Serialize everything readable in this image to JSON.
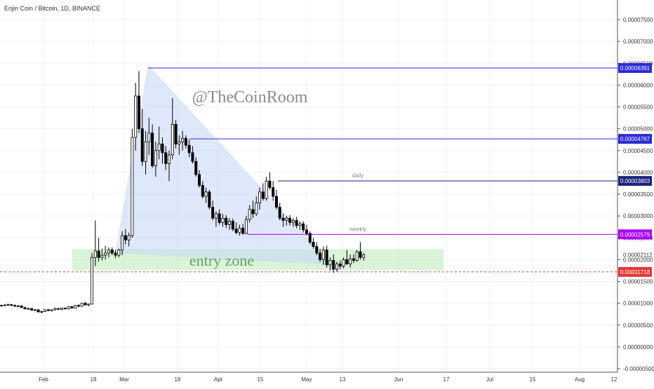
{
  "chart_data": {
    "type": "candlestick",
    "title": "Enjin Coin / Bitcoin, 1D, BINANCE",
    "watermark": "@TheCoinRoom",
    "zone_label": "entry zone",
    "x_ticks": [
      "Feb",
      "18",
      "Mar",
      "18",
      "Apr",
      "15",
      "May",
      "13",
      "Jun",
      "17",
      "Jul",
      "15",
      "Aug",
      "12"
    ],
    "y_ticks": [
      "0.00007500",
      "0.00007000",
      "0.00006500",
      "0.00006000",
      "0.00005500",
      "0.00005000",
      "0.00004500",
      "0.00004000",
      "0.00003500",
      "0.00003000",
      "0.00002500",
      "0.00002000",
      "0.00001500",
      "0.00001000",
      "0.00000500",
      "0.00000000",
      "-0.00000500"
    ],
    "ylim": [
      -5e-06,
      8e-05
    ],
    "price_label": "0.00002112",
    "levels": [
      {
        "value": 6.391e-05,
        "label": "0.00006391",
        "color": "#2b2bd6",
        "note": ""
      },
      {
        "value": 4.767e-05,
        "label": "0.00004767",
        "color": "#2b2bd6",
        "note": ""
      },
      {
        "value": 3.803e-05,
        "label": "0.00003803",
        "color": "#1a237e",
        "note": "daily"
      },
      {
        "value": 2.579e-05,
        "label": "0.00002579",
        "color": "#aa00ff",
        "note": "weekly"
      },
      {
        "value": 1.718e-05,
        "label": "0.00001718",
        "color": "#e53935",
        "note": ""
      }
    ],
    "entry_zone": {
      "from": 1.76e-05,
      "to": 2.24e-05
    },
    "candles": [
      [
        9.5e-06,
        9.7e-06,
        9.3e-06,
        9.5e-06
      ],
      [
        9.5e-06,
        9.8e-06,
        9.3e-06,
        9.6e-06
      ],
      [
        9.6e-06,
        9.9e-06,
        9.4e-06,
        9.7e-06
      ],
      [
        9.7e-06,
        9.8e-06,
        9.4e-06,
        9.5e-06
      ],
      [
        9.5e-06,
        9.7e-06,
        9.2e-06,
        9.3e-06
      ],
      [
        9.3e-06,
        9.6e-06,
        9.1e-06,
        9.4e-06
      ],
      [
        9.4e-06,
        9.5e-06,
        8.9e-06,
        9e-06
      ],
      [
        9e-06,
        9.2e-06,
        8.6e-06,
        8.7e-06
      ],
      [
        8.7e-06,
        9e-06,
        8.5e-06,
        8.8e-06
      ],
      [
        8.8e-06,
        8.9e-06,
        8.3e-06,
        8.4e-06
      ],
      [
        8.4e-06,
        8.7e-06,
        8.2e-06,
        8.5e-06
      ],
      [
        8.5e-06,
        8.6e-06,
        7.9e-06,
        8e-06
      ],
      [
        8e-06,
        8.3e-06,
        7.7e-06,
        8.1e-06
      ],
      [
        8.1e-06,
        8.6e-06,
        8e-06,
        8.5e-06
      ],
      [
        8.5e-06,
        8.7e-06,
        8.2e-06,
        8.3e-06
      ],
      [
        8.3e-06,
        8.6e-06,
        8.1e-06,
        8.5e-06
      ],
      [
        8.5e-06,
        9e-06,
        8.3e-06,
        8.8e-06
      ],
      [
        8.8e-06,
        8.9e-06,
        8.5e-06,
        8.6e-06
      ],
      [
        8.6e-06,
        9e-06,
        8.4e-06,
        8.9e-06
      ],
      [
        8.9e-06,
        9e-06,
        8.6e-06,
        8.7e-06
      ],
      [
        8.7e-06,
        9.3e-06,
        8.6e-06,
        9.2e-06
      ],
      [
        9.2e-06,
        9.4e-06,
        8.8e-06,
        8.9e-06
      ],
      [
        8.9e-06,
        9.6e-06,
        8.8e-06,
        9.5e-06
      ],
      [
        9.5e-06,
        9.8e-06,
        9.1e-06,
        9.3e-06
      ],
      [
        9.3e-06,
        1.01e-05,
        9.2e-06,
        1e-05
      ],
      [
        1e-05,
        1.03e-05,
        9.5e-06,
        9.6e-06
      ],
      [
        9.6e-06,
        9.9e-06,
        9.3e-06,
        9.8e-06
      ],
      [
        9.8e-06,
        2.15e-05,
        9.7e-06,
        2.05e-05
      ],
      [
        2.05e-05,
        2.9e-05,
        1.85e-05,
        2.2e-05
      ],
      [
        2.2e-05,
        2.5e-05,
        1.95e-05,
        2.05e-05
      ],
      [
        2.05e-05,
        2.25e-05,
        1.98e-05,
        2.1e-05
      ],
      [
        2.1e-05,
        2.32e-05,
        2e-05,
        2.15e-05
      ],
      [
        2.15e-05,
        2.28e-05,
        2.05e-05,
        2.22e-05
      ],
      [
        2.22e-05,
        2.28e-05,
        2.1e-05,
        2.15e-05
      ],
      [
        2.15e-05,
        2.22e-05,
        2.03e-05,
        2.1e-05
      ],
      [
        2.1e-05,
        2.25e-05,
        2.05e-05,
        2.22e-05
      ],
      [
        2.22e-05,
        2.65e-05,
        2.1e-05,
        2.55e-05
      ],
      [
        2.55e-05,
        2.7e-05,
        2.35e-05,
        2.45e-05
      ],
      [
        2.45e-05,
        2.62e-05,
        2.3e-05,
        2.55e-05
      ],
      [
        2.55e-05,
        5e-05,
        2.5e-05,
        4.8e-05
      ],
      [
        4.8e-05,
        6.05e-05,
        4.5e-05,
        5.75e-05
      ],
      [
        5.75e-05,
        6.32e-05,
        4.9e-05,
        5e-05
      ],
      [
        5e-05,
        5.45e-05,
        4.15e-05,
        4.25e-05
      ],
      [
        4.25e-05,
        4.95e-05,
        3.95e-05,
        4.7e-05
      ],
      [
        4.7e-05,
        5.25e-05,
        4.4e-05,
        4.9e-05
      ],
      [
        4.9e-05,
        5.1e-05,
        4.1e-05,
        4.15e-05
      ],
      [
        4.15e-05,
        4.7e-05,
        3.9e-05,
        4.5e-05
      ],
      [
        4.5e-05,
        5.05e-05,
        4.3e-05,
        4.65e-05
      ],
      [
        4.65e-05,
        4.8e-05,
        4.2e-05,
        4.45e-05
      ],
      [
        4.45e-05,
        4.6e-05,
        4.05e-05,
        4.2e-05
      ],
      [
        4.2e-05,
        4.5e-05,
        3.8e-05,
        4.4e-05
      ],
      [
        4.4e-05,
        5.7e-05,
        4.3e-05,
        5.1e-05
      ],
      [
        5.1e-05,
        5.2e-05,
        4.55e-05,
        4.65e-05
      ],
      [
        4.65e-05,
        4.85e-05,
        4.4e-05,
        4.7e-05
      ],
      [
        4.7e-05,
        4.95e-05,
        4.5e-05,
        4.78e-05
      ],
      [
        4.78e-05,
        4.85e-05,
        4.55e-05,
        4.62e-05
      ],
      [
        4.62e-05,
        4.75e-05,
        4.35e-05,
        4.45e-05
      ],
      [
        4.45e-05,
        4.6e-05,
        4.2e-05,
        4.25e-05
      ],
      [
        4.25e-05,
        4.35e-05,
        3.9e-05,
        3.95e-05
      ],
      [
        3.95e-05,
        4.05e-05,
        3.65e-05,
        3.7e-05
      ],
      [
        3.7e-05,
        3.8e-05,
        3.4e-05,
        3.45e-05
      ],
      [
        3.45e-05,
        3.65e-05,
        3.3e-05,
        3.55e-05
      ],
      [
        3.55e-05,
        3.6e-05,
        3.15e-05,
        3.2e-05
      ],
      [
        3.2e-05,
        3.35e-05,
        2.9e-05,
        2.95e-05
      ],
      [
        2.95e-05,
        3.1e-05,
        2.75e-05,
        3.05e-05
      ],
      [
        3.05e-05,
        3.15e-05,
        2.8e-05,
        2.85e-05
      ],
      [
        2.85e-05,
        3.05e-05,
        2.75e-05,
        2.95e-05
      ],
      [
        2.95e-05,
        3.02e-05,
        2.72e-05,
        2.8e-05
      ],
      [
        2.8e-05,
        2.95e-05,
        2.68e-05,
        2.88e-05
      ],
      [
        2.88e-05,
        2.94e-05,
        2.65e-05,
        2.7e-05
      ],
      [
        2.7e-05,
        2.85e-05,
        2.58e-05,
        2.62e-05
      ],
      [
        2.62e-05,
        2.8e-05,
        2.55e-05,
        2.72e-05
      ],
      [
        2.72e-05,
        2.82e-05,
        2.57e-05,
        2.6e-05
      ],
      [
        2.6e-05,
        3e-05,
        2.58e-05,
        2.92e-05
      ],
      [
        2.92e-05,
        3.25e-05,
        2.85e-05,
        3.15e-05
      ],
      [
        3.15e-05,
        3.35e-05,
        2.95e-05,
        3.05e-05
      ],
      [
        3.05e-05,
        3.45e-05,
        3e-05,
        3.3e-05
      ],
      [
        3.3e-05,
        3.65e-05,
        3.15e-05,
        3.55e-05
      ],
      [
        3.55e-05,
        3.75e-05,
        3.35e-05,
        3.4e-05
      ],
      [
        3.4e-05,
        3.9e-05,
        3.35e-05,
        3.8e-05
      ],
      [
        3.8e-05,
        4e-05,
        3.6e-05,
        3.65e-05
      ],
      [
        3.65e-05,
        3.8e-05,
        3.35e-05,
        3.45e-05
      ],
      [
        3.45e-05,
        3.6e-05,
        3.15e-05,
        3.2e-05
      ],
      [
        3.2e-05,
        3.3e-05,
        2.9e-05,
        2.95e-05
      ],
      [
        2.95e-05,
        3.05e-05,
        2.75e-05,
        2.9e-05
      ],
      [
        2.9e-05,
        3e-05,
        2.78e-05,
        2.95e-05
      ],
      [
        2.95e-05,
        3.02e-05,
        2.78e-05,
        2.85e-05
      ],
      [
        2.85e-05,
        2.95e-05,
        2.75e-05,
        2.9e-05
      ],
      [
        2.9e-05,
        2.98e-05,
        2.72e-05,
        2.78e-05
      ],
      [
        2.78e-05,
        2.88e-05,
        2.68e-05,
        2.82e-05
      ],
      [
        2.82e-05,
        2.88e-05,
        2.62e-05,
        2.68e-05
      ],
      [
        2.68e-05,
        2.8e-05,
        2.55e-05,
        2.6e-05
      ],
      [
        2.6e-05,
        2.65e-05,
        2.35e-05,
        2.4e-05
      ],
      [
        2.4e-05,
        2.5e-05,
        2.25e-05,
        2.3e-05
      ],
      [
        2.3e-05,
        2.4e-05,
        2.1e-05,
        2.15e-05
      ],
      [
        2.15e-05,
        2.25e-05,
        1.95e-05,
        2e-05
      ],
      [
        2e-05,
        2.3e-05,
        1.88e-05,
        2.22e-05
      ],
      [
        2.22e-05,
        2.32e-05,
        1.82e-05,
        1.88e-05
      ],
      [
        1.88e-05,
        2.05e-05,
        1.75e-05,
        1.98e-05
      ],
      [
        1.98e-05,
        2.12e-05,
        1.7e-05,
        1.78e-05
      ],
      [
        1.78e-05,
        1.95e-05,
        1.72e-05,
        1.9e-05
      ],
      [
        1.9e-05,
        1.98e-05,
        1.78e-05,
        1.85e-05
      ],
      [
        1.85e-05,
        2.05e-05,
        1.8e-05,
        2e-05
      ],
      [
        2e-05,
        2.22e-05,
        1.88e-05,
        1.9e-05
      ],
      [
        1.9e-05,
        2.12e-05,
        1.82e-05,
        2.02e-05
      ],
      [
        2.02e-05,
        2.12e-05,
        1.92e-05,
        1.98e-05
      ],
      [
        1.98e-05,
        2.22e-05,
        1.95e-05,
        2.18e-05
      ],
      [
        2.18e-05,
        2.4e-05,
        2e-05,
        2.05e-05
      ],
      [
        2.05e-05,
        2.15e-05,
        1.98e-05,
        2.11e-05
      ]
    ]
  }
}
